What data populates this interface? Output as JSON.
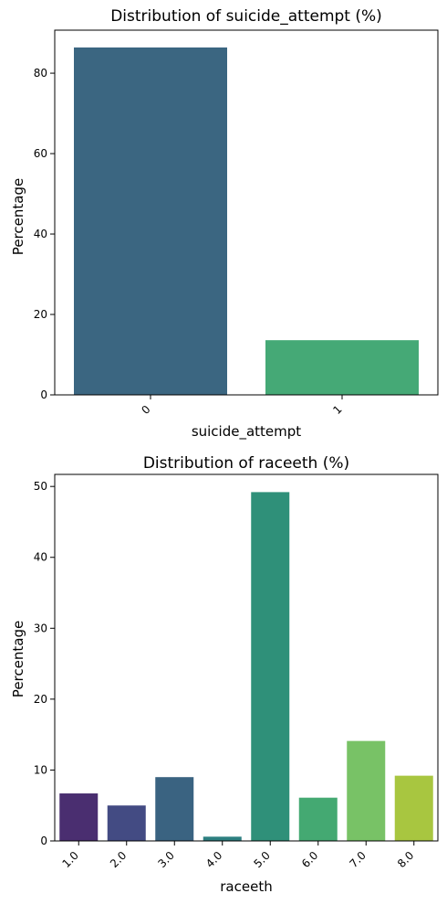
{
  "chart_data": [
    {
      "type": "bar",
      "title": "Distribution of suicide_attempt (%)",
      "xlabel": "suicide_attempt",
      "ylabel": "Percentage",
      "categories": [
        "0",
        "1"
      ],
      "values": [
        86.4,
        13.6
      ],
      "ylim": [
        0,
        90.7
      ],
      "yticks": [
        0,
        20,
        40,
        60,
        80
      ],
      "colors": [
        "#3b6681",
        "#45a976"
      ],
      "grid": false
    },
    {
      "type": "bar",
      "title": "Distribution of raceeth (%)",
      "xlabel": "raceeth",
      "ylabel": "Percentage",
      "categories": [
        "1.0",
        "2.0",
        "3.0",
        "4.0",
        "5.0",
        "6.0",
        "7.0",
        "8.0"
      ],
      "values": [
        6.7,
        5.0,
        9.0,
        0.6,
        49.2,
        6.1,
        14.1,
        9.2
      ],
      "ylim": [
        0,
        51.7
      ],
      "yticks": [
        0,
        10,
        20,
        30,
        40,
        50
      ],
      "colors": [
        "#4a2e70",
        "#434b83",
        "#3a6381",
        "#2d7f80",
        "#2f9079",
        "#44a972",
        "#78c266",
        "#a8c640"
      ],
      "grid": false
    }
  ]
}
